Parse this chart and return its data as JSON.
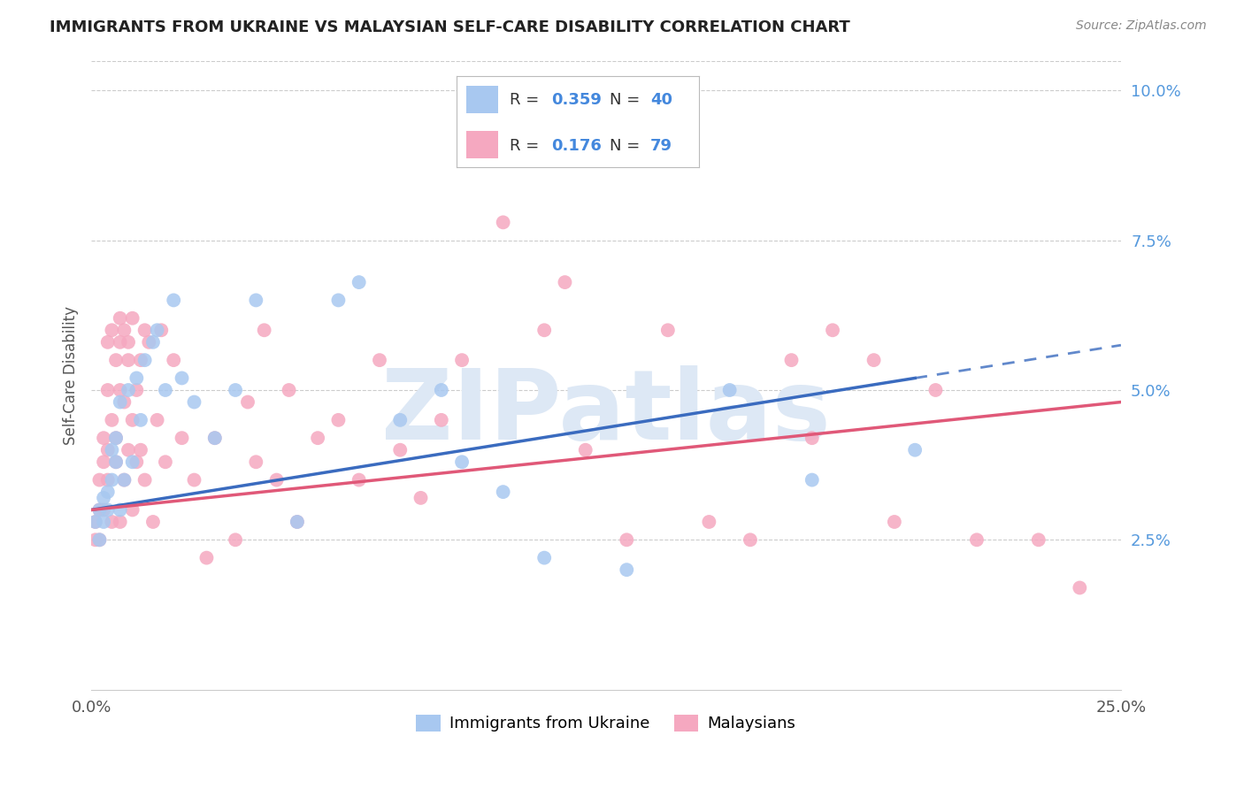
{
  "title": "IMMIGRANTS FROM UKRAINE VS MALAYSIAN SELF-CARE DISABILITY CORRELATION CHART",
  "source": "Source: ZipAtlas.com",
  "ylabel": "Self-Care Disability",
  "xlim": [
    0.0,
    0.25
  ],
  "ylim": [
    0.0,
    0.105
  ],
  "ytick_labels": [
    "2.5%",
    "5.0%",
    "7.5%",
    "10.0%"
  ],
  "ytick_positions": [
    0.025,
    0.05,
    0.075,
    0.1
  ],
  "blue_color": "#a8c8f0",
  "pink_color": "#f5a8c0",
  "line_blue": "#3a6bbf",
  "line_pink": "#e05878",
  "watermark_color": "#dde8f5",
  "ukraine_x": [
    0.001,
    0.002,
    0.002,
    0.003,
    0.003,
    0.004,
    0.004,
    0.005,
    0.005,
    0.006,
    0.006,
    0.007,
    0.007,
    0.008,
    0.009,
    0.01,
    0.011,
    0.012,
    0.013,
    0.015,
    0.016,
    0.018,
    0.02,
    0.022,
    0.025,
    0.03,
    0.035,
    0.04,
    0.05,
    0.06,
    0.065,
    0.075,
    0.085,
    0.09,
    0.1,
    0.11,
    0.13,
    0.155,
    0.175,
    0.2
  ],
  "ukraine_y": [
    0.028,
    0.025,
    0.03,
    0.032,
    0.028,
    0.033,
    0.03,
    0.035,
    0.04,
    0.038,
    0.042,
    0.03,
    0.048,
    0.035,
    0.05,
    0.038,
    0.052,
    0.045,
    0.055,
    0.058,
    0.06,
    0.05,
    0.065,
    0.052,
    0.048,
    0.042,
    0.05,
    0.065,
    0.028,
    0.065,
    0.068,
    0.045,
    0.05,
    0.038,
    0.033,
    0.022,
    0.02,
    0.05,
    0.035,
    0.04
  ],
  "malaysia_x": [
    0.001,
    0.001,
    0.002,
    0.002,
    0.002,
    0.003,
    0.003,
    0.003,
    0.004,
    0.004,
    0.004,
    0.004,
    0.005,
    0.005,
    0.005,
    0.006,
    0.006,
    0.006,
    0.007,
    0.007,
    0.007,
    0.007,
    0.008,
    0.008,
    0.008,
    0.009,
    0.009,
    0.009,
    0.01,
    0.01,
    0.01,
    0.011,
    0.011,
    0.012,
    0.012,
    0.013,
    0.013,
    0.014,
    0.015,
    0.016,
    0.017,
    0.018,
    0.02,
    0.022,
    0.025,
    0.028,
    0.03,
    0.035,
    0.038,
    0.04,
    0.042,
    0.045,
    0.048,
    0.05,
    0.055,
    0.06,
    0.065,
    0.07,
    0.075,
    0.08,
    0.085,
    0.09,
    0.1,
    0.11,
    0.115,
    0.12,
    0.13,
    0.14,
    0.15,
    0.16,
    0.17,
    0.175,
    0.18,
    0.19,
    0.195,
    0.205,
    0.215,
    0.23,
    0.24
  ],
  "malaysia_y": [
    0.028,
    0.025,
    0.03,
    0.035,
    0.025,
    0.038,
    0.03,
    0.042,
    0.035,
    0.05,
    0.04,
    0.058,
    0.028,
    0.045,
    0.06,
    0.038,
    0.055,
    0.042,
    0.05,
    0.058,
    0.062,
    0.028,
    0.048,
    0.06,
    0.035,
    0.055,
    0.04,
    0.058,
    0.045,
    0.062,
    0.03,
    0.05,
    0.038,
    0.055,
    0.04,
    0.06,
    0.035,
    0.058,
    0.028,
    0.045,
    0.06,
    0.038,
    0.055,
    0.042,
    0.035,
    0.022,
    0.042,
    0.025,
    0.048,
    0.038,
    0.06,
    0.035,
    0.05,
    0.028,
    0.042,
    0.045,
    0.035,
    0.055,
    0.04,
    0.032,
    0.045,
    0.055,
    0.078,
    0.06,
    0.068,
    0.04,
    0.025,
    0.06,
    0.028,
    0.025,
    0.055,
    0.042,
    0.06,
    0.055,
    0.028,
    0.05,
    0.025,
    0.025,
    0.017
  ],
  "blue_line_start": 0.0,
  "blue_line_solid_end": 0.2,
  "blue_line_dash_end": 0.25,
  "pink_line_start": 0.0,
  "pink_line_end": 0.25,
  "blue_intercept": 0.03,
  "blue_slope": 0.11,
  "pink_intercept": 0.03,
  "pink_slope": 0.072
}
